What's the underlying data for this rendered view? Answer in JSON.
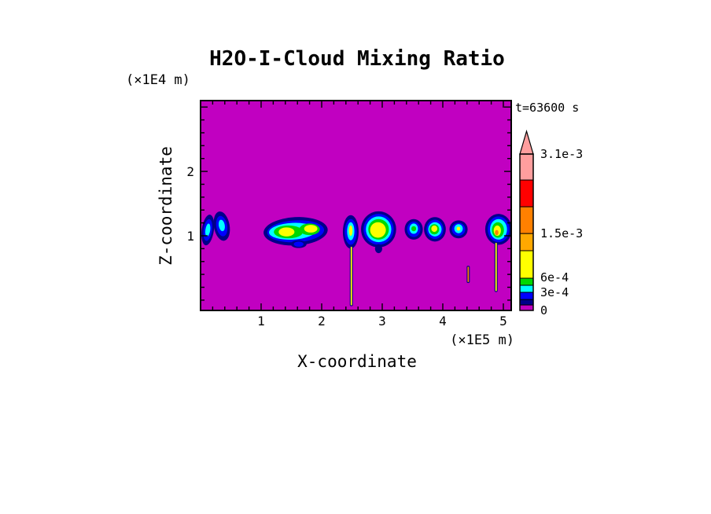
{
  "chart_data": {
    "type": "heatmap",
    "title": "H2O-I-Cloud Mixing Ratio",
    "time_label": "t=63600 s",
    "xlabel": "X-coordinate",
    "x_unit": "(×1E5 m)",
    "ylabel": "Z-coordinate",
    "y_unit": "(×1E4 m)",
    "x_range": [
      0,
      5.13
    ],
    "z_range": [
      -0.16,
      3.1
    ],
    "x_ticks": [
      {
        "v": 1,
        "label": "1"
      },
      {
        "v": 2,
        "label": "2"
      },
      {
        "v": 3,
        "label": "3"
      },
      {
        "v": 4,
        "label": "4"
      },
      {
        "v": 5,
        "label": "5"
      }
    ],
    "z_ticks": [
      {
        "v": 1,
        "label": "1"
      },
      {
        "v": 2,
        "label": "2"
      },
      {
        "v": 3,
        "label": ""
      }
    ],
    "x_minor_step": 0.2,
    "z_minor_step": 0.2,
    "colors": {
      "background": "#C100C1",
      "frame": "#000000",
      "navy": "#000089",
      "blue": "#0000FF",
      "cyan": "#00FFFF",
      "green": "#00D800",
      "yellow": "#FFFF00",
      "orange": "#FFA800",
      "dark_orange": "#FF8000",
      "red": "#FF0000",
      "pink": "#FF9E9E"
    },
    "colorbar": {
      "levels_labels": [
        "0",
        "3e-4",
        "6e-4",
        "1.5e-3",
        "3.1e-3"
      ],
      "labels": [
        {
          "text": "3.1e-3",
          "f": 1.0
        },
        {
          "text": "1.5e-3",
          "f": 0.492
        },
        {
          "text": "6e-4",
          "f": 0.21
        },
        {
          "text": "3e-4",
          "f": 0.116
        },
        {
          "text": "0",
          "f": 0.0
        }
      ],
      "bands": [
        {
          "color": "#C100C1",
          "f0": 0.0,
          "f1": 0.035
        },
        {
          "color": "#000089",
          "f0": 0.035,
          "f1": 0.07
        },
        {
          "color": "#0000FF",
          "f0": 0.07,
          "f1": 0.116
        },
        {
          "color": "#00FFFF",
          "f0": 0.116,
          "f1": 0.161
        },
        {
          "color": "#00D800",
          "f0": 0.161,
          "f1": 0.206
        },
        {
          "color": "#FFFF00",
          "f0": 0.206,
          "f1": 0.382
        },
        {
          "color": "#FFA800",
          "f0": 0.382,
          "f1": 0.492
        },
        {
          "color": "#FF8000",
          "f0": 0.492,
          "f1": 0.663
        },
        {
          "color": "#FF0000",
          "f0": 0.663,
          "f1": 0.834
        },
        {
          "color": "#FF9E9E",
          "f0": 0.834,
          "f1": 1.0
        }
      ],
      "arrow_color": "#FF9E9E"
    },
    "clouds": [
      {
        "name": "left-blob-1",
        "shapes": [
          {
            "c": "#000089",
            "x": 0.12,
            "z": 1.09,
            "rx": 0.1,
            "rz": 0.24,
            "rot": 8
          },
          {
            "c": "#0000FF",
            "x": 0.12,
            "z": 1.09,
            "rx": 0.07,
            "rz": 0.17,
            "rot": 8
          },
          {
            "c": "#00FFFF",
            "x": 0.12,
            "z": 1.09,
            "rx": 0.04,
            "rz": 0.1,
            "rot": 8
          }
        ]
      },
      {
        "name": "left-blob-2",
        "shapes": [
          {
            "c": "#000089",
            "x": 0.35,
            "z": 1.15,
            "rx": 0.13,
            "rz": 0.23,
            "rot": -10
          },
          {
            "c": "#0000FF",
            "x": 0.35,
            "z": 1.15,
            "rx": 0.09,
            "rz": 0.16,
            "rot": -10
          },
          {
            "c": "#00FFFF",
            "x": 0.35,
            "z": 1.16,
            "rx": 0.05,
            "rz": 0.09,
            "rot": -10
          }
        ]
      },
      {
        "name": "large-cloud",
        "shapes": [
          {
            "c": "#000089",
            "x": 1.57,
            "z": 1.07,
            "rx": 0.53,
            "rz": 0.22,
            "rot": -3
          },
          {
            "c": "#0000FF",
            "x": 1.57,
            "z": 1.07,
            "rx": 0.47,
            "rz": 0.17,
            "rot": -3
          },
          {
            "c": "#00FFFF",
            "x": 1.52,
            "z": 1.07,
            "rx": 0.39,
            "rz": 0.13,
            "rot": -3
          },
          {
            "c": "#00D800",
            "x": 1.45,
            "z": 1.06,
            "rx": 0.24,
            "rz": 0.1,
            "rot": 0
          },
          {
            "c": "#FFFF00",
            "x": 1.42,
            "z": 1.06,
            "rx": 0.13,
            "rz": 0.07,
            "rot": 0
          },
          {
            "c": "#00D800",
            "x": 1.8,
            "z": 1.1,
            "rx": 0.17,
            "rz": 0.09,
            "rot": 0
          },
          {
            "c": "#FFFF00",
            "x": 1.82,
            "z": 1.11,
            "rx": 0.11,
            "rz": 0.06,
            "rot": 0
          },
          {
            "c": "#000089",
            "x": 1.62,
            "z": 0.87,
            "rx": 0.13,
            "rz": 0.06,
            "rot": 0
          },
          {
            "c": "#0000FF",
            "x": 1.62,
            "z": 0.87,
            "rx": 0.08,
            "rz": 0.04,
            "rot": 0
          }
        ]
      },
      {
        "name": "narrow-cloud",
        "shapes": [
          {
            "c": "#000089",
            "x": 2.48,
            "z": 1.06,
            "rx": 0.13,
            "rz": 0.26,
            "rot": 0
          },
          {
            "c": "#0000FF",
            "x": 2.48,
            "z": 1.06,
            "rx": 0.1,
            "rz": 0.2,
            "rot": 0
          },
          {
            "c": "#00FFFF",
            "x": 2.48,
            "z": 1.07,
            "rx": 0.06,
            "rz": 0.14,
            "rot": 0
          },
          {
            "c": "#FFFF00",
            "x": 2.48,
            "z": 1.08,
            "rx": 0.03,
            "rz": 0.08,
            "rot": 0
          }
        ]
      },
      {
        "name": "central-cloud",
        "shapes": [
          {
            "c": "#000089",
            "x": 2.94,
            "z": 1.1,
            "rx": 0.29,
            "rz": 0.28,
            "rot": 0
          },
          {
            "c": "#0000FF",
            "x": 2.94,
            "z": 1.1,
            "rx": 0.25,
            "rz": 0.24,
            "rot": 0
          },
          {
            "c": "#00FFFF",
            "x": 2.94,
            "z": 1.1,
            "rx": 0.21,
            "rz": 0.2,
            "rot": 0
          },
          {
            "c": "#00D800",
            "x": 2.94,
            "z": 1.1,
            "rx": 0.17,
            "rz": 0.16,
            "rot": 0
          },
          {
            "c": "#FFFF00",
            "x": 2.93,
            "z": 1.09,
            "rx": 0.13,
            "rz": 0.12,
            "rot": 0
          },
          {
            "c": "#000089",
            "x": 2.94,
            "z": 0.8,
            "rx": 0.06,
            "rz": 0.07,
            "rot": 0
          }
        ]
      },
      {
        "name": "blob-a",
        "shapes": [
          {
            "c": "#000089",
            "x": 3.52,
            "z": 1.1,
            "rx": 0.15,
            "rz": 0.16,
            "rot": 0
          },
          {
            "c": "#0000FF",
            "x": 3.52,
            "z": 1.1,
            "rx": 0.11,
            "rz": 0.12,
            "rot": 0
          },
          {
            "c": "#00FFFF",
            "x": 3.52,
            "z": 1.11,
            "rx": 0.07,
            "rz": 0.08,
            "rot": 0
          },
          {
            "c": "#00D800",
            "x": 3.52,
            "z": 1.11,
            "rx": 0.04,
            "rz": 0.04,
            "rot": 0
          }
        ]
      },
      {
        "name": "blob-b",
        "shapes": [
          {
            "c": "#000089",
            "x": 3.87,
            "z": 1.1,
            "rx": 0.18,
            "rz": 0.19,
            "rot": 0
          },
          {
            "c": "#0000FF",
            "x": 3.87,
            "z": 1.1,
            "rx": 0.14,
            "rz": 0.15,
            "rot": 0
          },
          {
            "c": "#00FFFF",
            "x": 3.87,
            "z": 1.1,
            "rx": 0.11,
            "rz": 0.11,
            "rot": 0
          },
          {
            "c": "#00D800",
            "x": 3.86,
            "z": 1.1,
            "rx": 0.08,
            "rz": 0.08,
            "rot": 0
          },
          {
            "c": "#FFFF00",
            "x": 3.86,
            "z": 1.11,
            "rx": 0.05,
            "rz": 0.05,
            "rot": 0
          }
        ]
      },
      {
        "name": "blob-c",
        "shapes": [
          {
            "c": "#000089",
            "x": 4.26,
            "z": 1.1,
            "rx": 0.15,
            "rz": 0.14,
            "rot": 0
          },
          {
            "c": "#0000FF",
            "x": 4.26,
            "z": 1.1,
            "rx": 0.11,
            "rz": 0.1,
            "rot": 0
          },
          {
            "c": "#00FFFF",
            "x": 4.26,
            "z": 1.11,
            "rx": 0.07,
            "rz": 0.07,
            "rot": 0
          },
          {
            "c": "#FFFF00",
            "x": 4.26,
            "z": 1.11,
            "rx": 0.03,
            "rz": 0.03,
            "rot": 0
          }
        ]
      },
      {
        "name": "right-cloud",
        "shapes": [
          {
            "c": "#000089",
            "x": 4.92,
            "z": 1.1,
            "rx": 0.22,
            "rz": 0.24,
            "rot": 0
          },
          {
            "c": "#0000FF",
            "x": 4.92,
            "z": 1.1,
            "rx": 0.18,
            "rz": 0.2,
            "rot": 0
          },
          {
            "c": "#00FFFF",
            "x": 4.92,
            "z": 1.1,
            "rx": 0.14,
            "rz": 0.16,
            "rot": 0
          },
          {
            "c": "#00D800",
            "x": 4.91,
            "z": 1.09,
            "rx": 0.1,
            "rz": 0.12,
            "rot": 0
          },
          {
            "c": "#FFFF00",
            "x": 4.9,
            "z": 1.08,
            "rx": 0.06,
            "rz": 0.08,
            "rot": 0
          },
          {
            "c": "#FF8000",
            "x": 4.89,
            "z": 1.05,
            "rx": 0.03,
            "rz": 0.04,
            "rot": 0
          }
        ]
      }
    ],
    "streaks": [
      {
        "x": 2.49,
        "z_top": 0.82,
        "z_bottom": -0.07,
        "core": "#FFFF00",
        "edge": "#000089"
      },
      {
        "x": 4.88,
        "z_top": 0.88,
        "z_bottom": 0.15,
        "core": "#FFFF00",
        "edge": "#000089"
      },
      {
        "x": 4.42,
        "z_top": 0.51,
        "z_bottom": 0.29,
        "core": "#FF8000",
        "edge": "#000089"
      }
    ]
  }
}
